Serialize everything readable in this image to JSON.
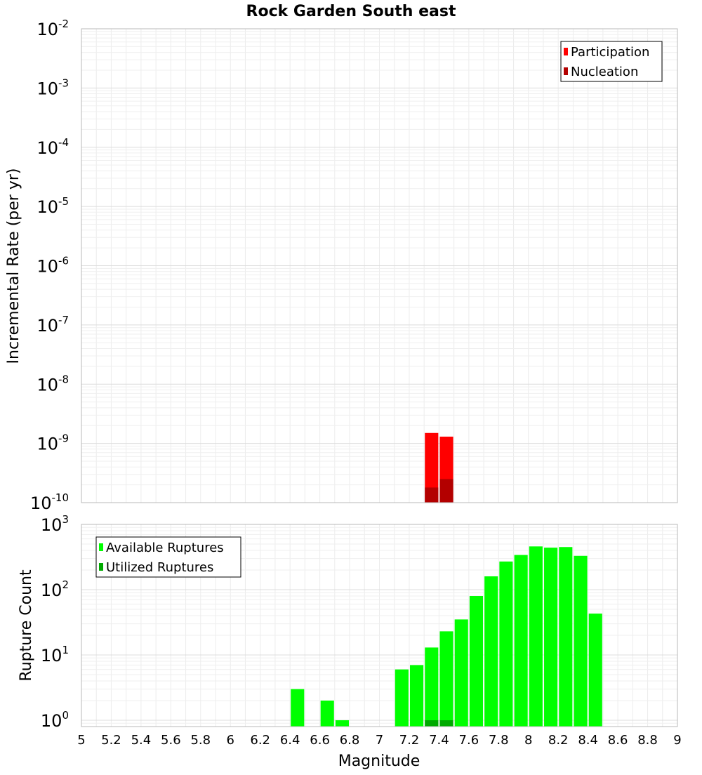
{
  "chart_data": [
    {
      "type": "bar",
      "title": "Rock Garden South east",
      "xlabel": "",
      "ylabel": "Incremental Rate (per yr)",
      "yscale": "log",
      "xlim": [
        5,
        9
      ],
      "ylim": [
        1e-10,
        0.01
      ],
      "grid": true,
      "y_tick_exponents": [
        "-2",
        "-3",
        "-4",
        "-5",
        "-6",
        "-7",
        "-8",
        "-9",
        "-10"
      ],
      "y_tick_base": "10",
      "legend_position": "top-right",
      "bar_width": 0.09,
      "series": [
        {
          "name": "Participation",
          "color": "#ff0000",
          "x": [
            7.35,
            7.45
          ],
          "values": [
            1.5e-09,
            1.3e-09
          ]
        },
        {
          "name": "Nucleation",
          "color": "#b30000",
          "x": [
            7.35,
            7.45
          ],
          "values": [
            1.8e-10,
            2.5e-10
          ]
        }
      ]
    },
    {
      "type": "bar",
      "title": "",
      "xlabel": "Magnitude",
      "ylabel": "Rupture Count",
      "yscale": "log",
      "xlim": [
        5,
        9
      ],
      "ylim": [
        0.8,
        1000
      ],
      "grid": true,
      "x_ticks": [
        "5",
        "5.2",
        "5.4",
        "5.6",
        "5.8",
        "6",
        "6.2",
        "6.4",
        "6.6",
        "6.8",
        "7",
        "7.2",
        "7.4",
        "7.6",
        "7.8",
        "8",
        "8.2",
        "8.4",
        "8.6",
        "8.8",
        "9"
      ],
      "y_tick_exponents": [
        "3",
        "2",
        "1",
        "0"
      ],
      "y_tick_base": "10",
      "legend_position": "top-left",
      "bar_width": 0.09,
      "series": [
        {
          "name": "Available Ruptures",
          "color": "#00ff00",
          "x": [
            6.45,
            6.65,
            6.75,
            7.15,
            7.25,
            7.35,
            7.45,
            7.55,
            7.65,
            7.75,
            7.85,
            7.95,
            8.05,
            8.15,
            8.25,
            8.35,
            8.45
          ],
          "values": [
            3,
            2,
            1,
            6,
            7,
            13,
            23,
            35,
            80,
            160,
            270,
            340,
            460,
            440,
            450,
            330,
            43
          ]
        },
        {
          "name": "Utilized Ruptures",
          "color": "#00aa00",
          "x": [
            7.35,
            7.45
          ],
          "values": [
            1,
            1
          ]
        }
      ]
    }
  ]
}
